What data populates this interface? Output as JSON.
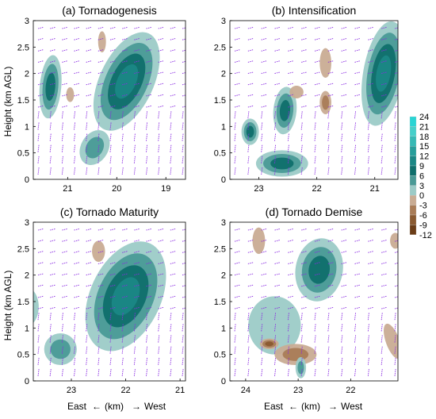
{
  "figure": {
    "ylabel": "Height (km AGL)",
    "xlabel_left": "East",
    "xlabel_unit": "(km)",
    "xlabel_right": "West",
    "arrow_left": "←",
    "arrow_right": "→"
  },
  "chart_data": [
    {
      "type": "heatmap",
      "title": "(a) Tornadogenesis",
      "x_ticks": [
        "21",
        "20",
        "19"
      ],
      "y_ticks": [
        "0",
        "0.5",
        "1",
        "1.5",
        "2",
        "2.5",
        "3"
      ],
      "ylim": [
        0,
        3
      ],
      "x_direction": "East ← → West",
      "features": [
        {
          "cx": 21.35,
          "cy": 1.75,
          "rx": 0.22,
          "ry": 0.6,
          "value": 9,
          "angle": 5
        },
        {
          "cx": 19.8,
          "cy": 1.85,
          "rx": 0.55,
          "ry": 1.0,
          "value": 12,
          "angle": 25
        },
        {
          "cx": 20.45,
          "cy": 0.6,
          "rx": 0.28,
          "ry": 0.35,
          "value": 6,
          "angle": 30
        },
        {
          "cx": 20.95,
          "cy": 1.6,
          "rx": 0.08,
          "ry": 0.14,
          "value": -3,
          "angle": 0
        },
        {
          "cx": 20.3,
          "cy": 2.6,
          "rx": 0.08,
          "ry": 0.2,
          "value": -3,
          "angle": 0
        }
      ]
    },
    {
      "type": "heatmap",
      "title": "(b) Intensification",
      "x_ticks": [
        "23",
        "22",
        "21"
      ],
      "y_ticks": [
        "0",
        "0.5",
        "1",
        "1.5",
        "2",
        "2.5",
        "3"
      ],
      "ylim": [
        0,
        3
      ],
      "x_direction": "East ← → West",
      "features": [
        {
          "cx": 20.85,
          "cy": 2.0,
          "rx": 0.35,
          "ry": 1.0,
          "value": 12,
          "angle": 10
        },
        {
          "cx": 22.55,
          "cy": 1.3,
          "rx": 0.2,
          "ry": 0.45,
          "value": 9,
          "angle": 5
        },
        {
          "cx": 23.15,
          "cy": 0.9,
          "rx": 0.15,
          "ry": 0.25,
          "value": 9,
          "angle": 0
        },
        {
          "cx": 22.6,
          "cy": 0.3,
          "rx": 0.45,
          "ry": 0.25,
          "value": 9,
          "angle": 0
        },
        {
          "cx": 21.85,
          "cy": 1.45,
          "rx": 0.1,
          "ry": 0.22,
          "value": -6,
          "angle": 0
        },
        {
          "cx": 21.85,
          "cy": 2.2,
          "rx": 0.1,
          "ry": 0.28,
          "value": -3,
          "angle": 0
        },
        {
          "cx": 22.35,
          "cy": 1.65,
          "rx": 0.12,
          "ry": 0.12,
          "value": -3,
          "angle": 0
        }
      ]
    },
    {
      "type": "heatmap",
      "title": "(c) Tornado Maturity",
      "x_ticks": [
        "23",
        "22",
        "21"
      ],
      "y_ticks": [
        "0",
        "0.5",
        "1",
        "1.5",
        "2",
        "2.5",
        "3"
      ],
      "ylim": [
        0,
        3
      ],
      "x_direction": "East ← → West",
      "features": [
        {
          "cx": 22.0,
          "cy": 1.6,
          "rx": 0.65,
          "ry": 1.1,
          "value": 12,
          "angle": 25
        },
        {
          "cx": 23.2,
          "cy": 0.6,
          "rx": 0.3,
          "ry": 0.3,
          "value": 6,
          "angle": 0
        },
        {
          "cx": 23.8,
          "cy": 1.4,
          "rx": 0.2,
          "ry": 0.35,
          "value": 3,
          "angle": 0
        },
        {
          "cx": 22.5,
          "cy": 2.45,
          "rx": 0.12,
          "ry": 0.2,
          "value": -3,
          "angle": 0
        }
      ]
    },
    {
      "type": "heatmap",
      "title": "(d) Tornado Demise",
      "x_ticks": [
        "24",
        "23",
        "22"
      ],
      "y_ticks": [
        "0",
        "0.5",
        "1",
        "1.5",
        "2",
        "2.5",
        "3"
      ],
      "ylim": [
        0,
        3
      ],
      "x_direction": "East ← → West",
      "features": [
        {
          "cx": 22.6,
          "cy": 2.1,
          "rx": 0.45,
          "ry": 0.6,
          "value": 9,
          "angle": 10
        },
        {
          "cx": 23.45,
          "cy": 1.05,
          "rx": 0.5,
          "ry": 0.55,
          "value": 3,
          "angle": 0
        },
        {
          "cx": 23.05,
          "cy": 0.5,
          "rx": 0.4,
          "ry": 0.2,
          "value": -6,
          "angle": 0
        },
        {
          "cx": 23.55,
          "cy": 0.7,
          "rx": 0.18,
          "ry": 0.1,
          "value": -9,
          "angle": 0
        },
        {
          "cx": 22.95,
          "cy": 0.25,
          "rx": 0.1,
          "ry": 0.2,
          "value": 6,
          "angle": 0
        },
        {
          "cx": 21.2,
          "cy": 0.75,
          "rx": 0.13,
          "ry": 0.35,
          "value": -3,
          "angle": -20
        },
        {
          "cx": 23.75,
          "cy": 2.65,
          "rx": 0.12,
          "ry": 0.25,
          "value": -3,
          "angle": 0
        },
        {
          "cx": 21.15,
          "cy": 2.65,
          "rx": 0.1,
          "ry": 0.15,
          "value": -3,
          "angle": 0
        }
      ]
    }
  ],
  "colorbar": {
    "labels": [
      "24",
      "21",
      "18",
      "15",
      "12",
      "9",
      "6",
      "3",
      "0",
      "-3",
      "-6",
      "-9",
      "-12"
    ],
    "colors": {
      "c24": "#2ad4d4",
      "c21": "#46cfca",
      "c18": "#37b9b5",
      "c15": "#279e9b",
      "c12": "#1b8785",
      "c9": "#0f6f6c",
      "c6": "#4a9a96",
      "c3": "#9ccbc7",
      "c0": "#ffffff",
      "cm3": "#c9ac93",
      "cm6": "#a97c57",
      "cm9": "#8a5a31",
      "cm12": "#6b3d17"
    }
  },
  "vector_color": "#8a2be2"
}
